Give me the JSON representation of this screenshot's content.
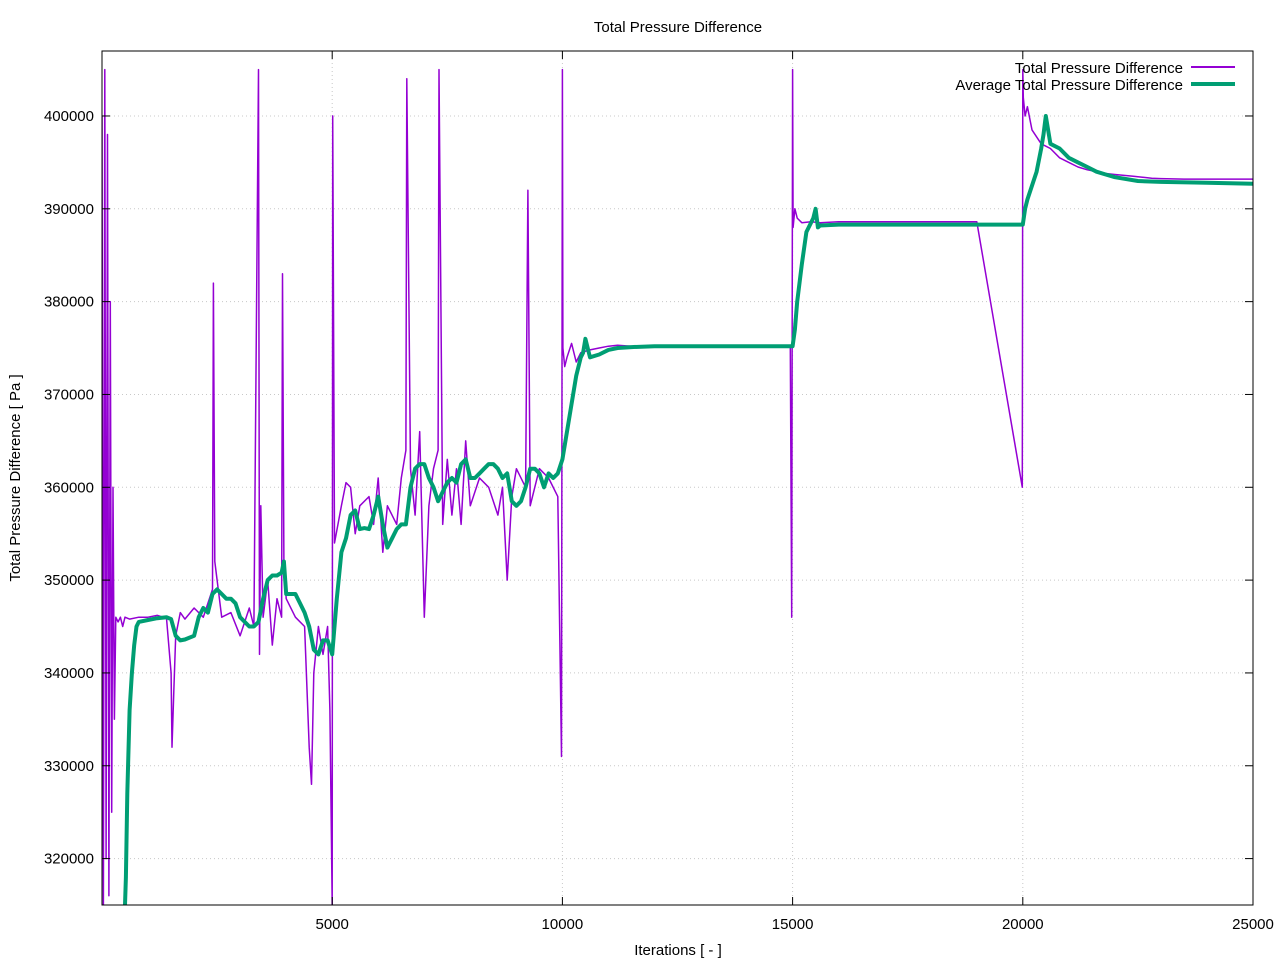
{
  "chart_data": {
    "type": "line",
    "title": "Total Pressure Difference",
    "xlabel": "Iterations [ - ]",
    "ylabel": "Total Pressure Difference [ Pa ]",
    "xlim": [
      0,
      25000
    ],
    "ylim": [
      315000,
      407000
    ],
    "grid": true,
    "legend_position": "top-right",
    "x_ticks": [
      5000,
      10000,
      15000,
      20000,
      25000
    ],
    "x_tick_labels": [
      "5000",
      "10000",
      "15000",
      "20000",
      "25000"
    ],
    "y_ticks": [
      320000,
      330000,
      340000,
      350000,
      360000,
      370000,
      380000,
      390000,
      400000
    ],
    "y_tick_labels": [
      "320000",
      "330000",
      "340000",
      "350000",
      "360000",
      "370000",
      "380000",
      "390000",
      "400000"
    ],
    "series": [
      {
        "name": "Total Pressure Difference",
        "color": "#9400d3",
        "x": [
          0,
          30,
          60,
          90,
          120,
          150,
          180,
          210,
          240,
          270,
          300,
          350,
          400,
          450,
          500,
          600,
          800,
          1000,
          1200,
          1400,
          1500,
          1520,
          1560,
          1600,
          1700,
          1800,
          2000,
          2200,
          2400,
          2420,
          2450,
          2600,
          2800,
          3000,
          3200,
          3300,
          3400,
          3420,
          3450,
          3500,
          3600,
          3700,
          3800,
          3900,
          3920,
          3950,
          4000,
          4200,
          4400,
          4500,
          4550,
          4600,
          4700,
          4800,
          4900,
          4950,
          5000,
          5010,
          5050,
          5200,
          5300,
          5400,
          5500,
          5600,
          5800,
          5900,
          6000,
          6100,
          6200,
          6400,
          6500,
          6600,
          6620,
          6700,
          6800,
          6900,
          7000,
          7100,
          7200,
          7300,
          7320,
          7400,
          7500,
          7600,
          7700,
          7800,
          7900,
          8000,
          8200,
          8400,
          8600,
          8700,
          8800,
          8900,
          9000,
          9200,
          9250,
          9300,
          9500,
          9700,
          9900,
          9980,
          10000,
          10010,
          10050,
          10100,
          10200,
          10300,
          10400,
          10600,
          10800,
          11000,
          11200,
          11500,
          12000,
          13000,
          14000,
          14950,
          14980,
          15000,
          15010,
          15050,
          15100,
          15200,
          15400,
          15600,
          16000,
          17000,
          18000,
          19000,
          19990,
          20000,
          20010,
          20050,
          20100,
          20200,
          20400,
          20600,
          20800,
          21000,
          21200,
          21400,
          21600,
          21800,
          22000,
          22200,
          22400,
          22600,
          22800,
          23000,
          23500,
          24000,
          24500,
          25000
        ],
        "y": [
          400000,
          315000,
          405000,
          320000,
          398000,
          316000,
          380000,
          325000,
          360000,
          335000,
          346000,
          345500,
          346000,
          345000,
          346000,
          345800,
          346000,
          346000,
          346200,
          345900,
          340000,
          332000,
          338000,
          344000,
          346500,
          345800,
          347000,
          346000,
          349000,
          382000,
          352000,
          346000,
          346500,
          344000,
          347000,
          345000,
          405000,
          342000,
          358000,
          346000,
          350000,
          343000,
          348000,
          346000,
          383000,
          352000,
          348000,
          346000,
          345000,
          332000,
          328000,
          340000,
          345000,
          342000,
          345000,
          336000,
          315000,
          400000,
          354000,
          358000,
          360500,
          360000,
          355000,
          358000,
          359000,
          356000,
          361000,
          353000,
          358000,
          356000,
          361000,
          364000,
          404000,
          362000,
          357000,
          366000,
          346000,
          358000,
          362000,
          364000,
          405000,
          356000,
          363000,
          357000,
          362000,
          356000,
          365000,
          358000,
          361000,
          360000,
          357000,
          360000,
          350000,
          359000,
          362000,
          360000,
          392000,
          358000,
          362000,
          361000,
          359000,
          331000,
          405000,
          375000,
          373000,
          374000,
          375500,
          373500,
          374500,
          374800,
          375000,
          375200,
          375300,
          375200,
          375200,
          375200,
          375200,
          375200,
          346000,
          405000,
          388000,
          390000,
          389000,
          388500,
          388600,
          388500,
          388600,
          388600,
          388600,
          388600,
          360000,
          405000,
          402000,
          400000,
          401000,
          398500,
          397000,
          396500,
          395500,
          395000,
          394500,
          394200,
          394000,
          393800,
          393700,
          393600,
          393500,
          393400,
          393300,
          393250,
          393200,
          393200,
          393200,
          393200
        ]
      },
      {
        "name": "Average Total Pressure Difference",
        "color": "#009e73",
        "x": [
          500,
          520,
          550,
          600,
          650,
          700,
          750,
          800,
          1000,
          1200,
          1400,
          1500,
          1600,
          1700,
          1800,
          2000,
          2100,
          2200,
          2300,
          2400,
          2500,
          2600,
          2700,
          2800,
          2900,
          3000,
          3100,
          3200,
          3300,
          3400,
          3500,
          3600,
          3700,
          3800,
          3900,
          3950,
          4000,
          4100,
          4200,
          4300,
          4400,
          4500,
          4600,
          4700,
          4800,
          4900,
          5000,
          5100,
          5200,
          5300,
          5400,
          5500,
          5600,
          5700,
          5800,
          5900,
          6000,
          6100,
          6200,
          6300,
          6400,
          6500,
          6600,
          6700,
          6800,
          6900,
          7000,
          7100,
          7200,
          7300,
          7400,
          7500,
          7600,
          7700,
          7800,
          7900,
          8000,
          8100,
          8200,
          8300,
          8400,
          8500,
          8600,
          8700,
          8800,
          8900,
          9000,
          9100,
          9200,
          9300,
          9400,
          9500,
          9600,
          9700,
          9800,
          9900,
          10000,
          10100,
          10200,
          10300,
          10400,
          10450,
          10500,
          10600,
          10800,
          11000,
          11200,
          11500,
          12000,
          13000,
          14000,
          15000,
          15050,
          15100,
          15200,
          15300,
          15400,
          15450,
          15500,
          15550,
          15600,
          16000,
          17000,
          18000,
          19000,
          20000,
          20050,
          20100,
          20200,
          20300,
          20400,
          20450,
          20500,
          20600,
          20800,
          21000,
          21200,
          21400,
          21600,
          21800,
          22000,
          22500,
          23000,
          24000,
          25000
        ],
        "y": [
          315000,
          318000,
          327000,
          336000,
          340000,
          343000,
          345000,
          345500,
          345700,
          345900,
          346000,
          345800,
          344000,
          343500,
          343600,
          344000,
          346000,
          347000,
          346500,
          348500,
          349000,
          348500,
          348000,
          348000,
          347500,
          346000,
          345500,
          345000,
          345000,
          345500,
          348000,
          350000,
          350500,
          350500,
          350800,
          352000,
          348500,
          348500,
          348500,
          347500,
          346500,
          345000,
          342500,
          342000,
          343500,
          343500,
          342000,
          348000,
          353000,
          354500,
          357000,
          357500,
          355500,
          355600,
          355500,
          357000,
          359000,
          356000,
          353500,
          354500,
          355500,
          356000,
          356000,
          360000,
          362000,
          362500,
          362500,
          361000,
          360000,
          358500,
          359500,
          360500,
          361000,
          360500,
          362500,
          363000,
          361000,
          361000,
          361500,
          362000,
          362500,
          362500,
          362000,
          361000,
          361500,
          358500,
          358000,
          358500,
          360000,
          362000,
          362000,
          361500,
          360000,
          361500,
          361000,
          361500,
          363000,
          366000,
          369000,
          372000,
          374000,
          374500,
          376000,
          374000,
          374300,
          374800,
          375000,
          375100,
          375200,
          375200,
          375200,
          375200,
          377000,
          380000,
          384000,
          387500,
          388500,
          389000,
          390000,
          388000,
          388200,
          388300,
          388300,
          388300,
          388300,
          388300,
          390000,
          391000,
          392500,
          394000,
          396500,
          398000,
          400000,
          397000,
          396500,
          395500,
          395000,
          394500,
          394000,
          393700,
          393400,
          393000,
          392900,
          392800,
          392700
        ]
      }
    ]
  }
}
